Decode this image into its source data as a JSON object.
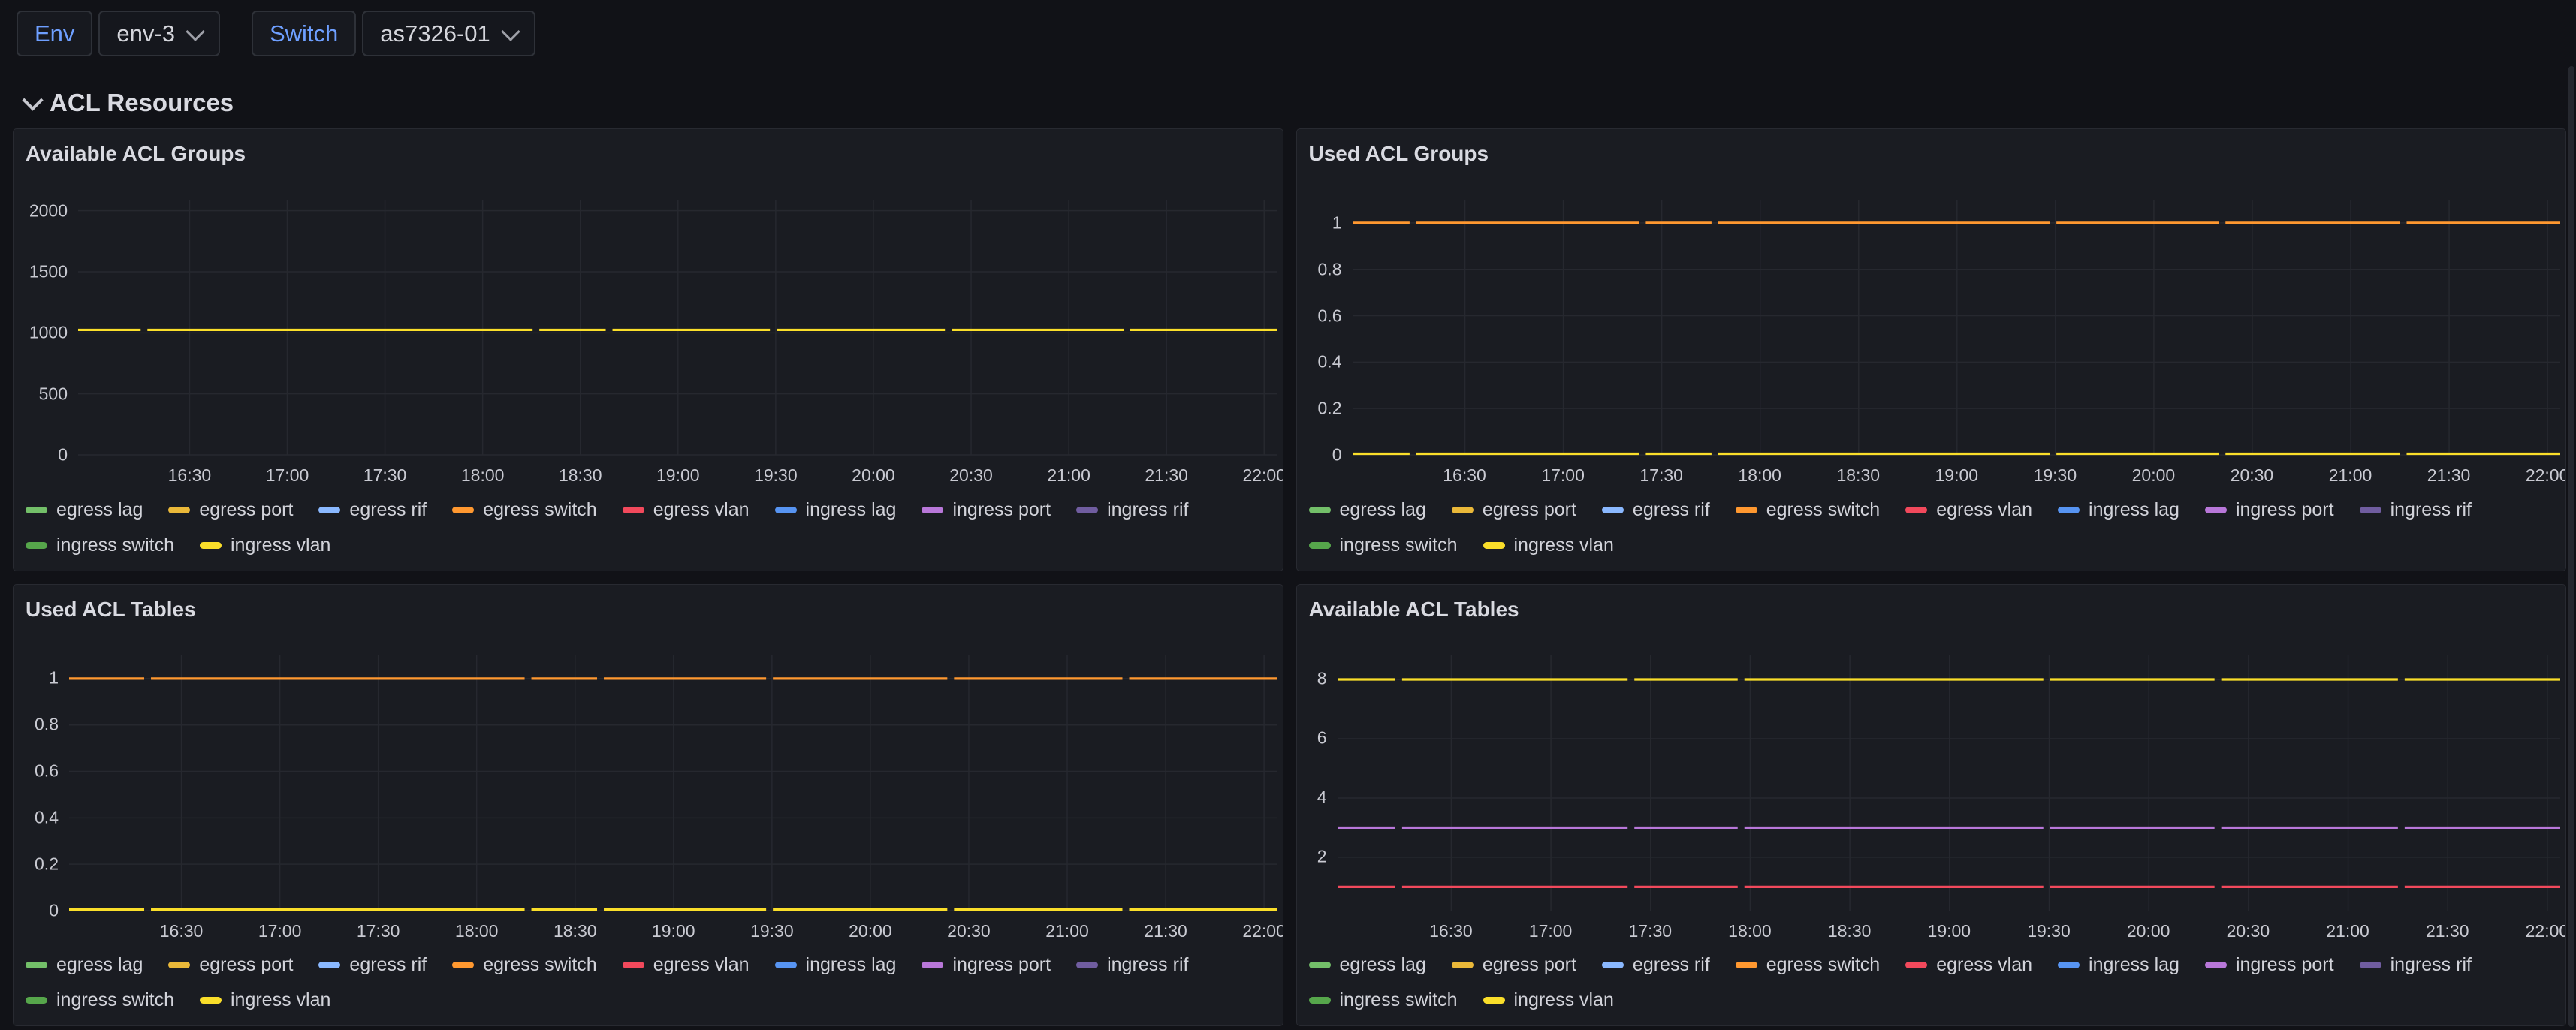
{
  "topbar": {
    "env_label": "Env",
    "env_value": "env-3",
    "switch_label": "Switch",
    "switch_value": "as7326-01"
  },
  "section": {
    "title": "ACL Resources"
  },
  "colors": {
    "page_bg": "#111217",
    "panel_bg": "#1A1C22",
    "grid_line": "#26282F",
    "axis_text": "#C9CAD2",
    "label_accent_blue": "#6E9FFF"
  },
  "x_ticks": [
    "16:30",
    "17:00",
    "17:30",
    "18:00",
    "18:30",
    "19:00",
    "19:30",
    "20:00",
    "20:30",
    "21:00",
    "21:30",
    "22:00"
  ],
  "legend": {
    "items": [
      {
        "label": "egress lag",
        "color": "#73BF69"
      },
      {
        "label": "egress port",
        "color": "#EAB839"
      },
      {
        "label": "egress rif",
        "color": "#8AB8FF"
      },
      {
        "label": "egress switch",
        "color": "#FF9830"
      },
      {
        "label": "egress vlan",
        "color": "#F2495C"
      },
      {
        "label": "ingress lag",
        "color": "#5794F2"
      },
      {
        "label": "ingress port",
        "color": "#B877D9"
      },
      {
        "label": "ingress rif",
        "color": "#705DA0"
      },
      {
        "label": "ingress switch",
        "color": "#56A64B"
      },
      {
        "label": "ingress vlan",
        "color": "#FADE2A"
      }
    ]
  },
  "panels": [
    {
      "title": "Available ACL Groups",
      "type": "line",
      "y_ticks": [
        {
          "v": 0,
          "label": "0"
        },
        {
          "v": 500,
          "label": "500"
        },
        {
          "v": 1000,
          "label": "1000"
        },
        {
          "v": 1500,
          "label": "1500"
        },
        {
          "v": 2000,
          "label": "2000"
        }
      ],
      "y_min": 0,
      "y_max": 2090,
      "gaps": [
        0.055,
        0.382,
        0.443,
        0.58,
        0.726,
        0.875
      ],
      "lines": [
        {
          "series": "ingress vlan",
          "color": "#FADE2A",
          "value": 1024
        }
      ]
    },
    {
      "title": "Used ACL Groups",
      "type": "line",
      "y_ticks": [
        {
          "v": 0,
          "label": "0"
        },
        {
          "v": 0.2,
          "label": "0.2"
        },
        {
          "v": 0.4,
          "label": "0.4"
        },
        {
          "v": 0.6,
          "label": "0.6"
        },
        {
          "v": 0.8,
          "label": "0.8"
        },
        {
          "v": 1,
          "label": "1"
        }
      ],
      "y_min": 0,
      "y_max": 1.1,
      "gaps": [
        0.05,
        0.24,
        0.3,
        0.58,
        0.72,
        0.87
      ],
      "lines": [
        {
          "series": "egress switch",
          "color": "#FF9830",
          "value": 1
        },
        {
          "series": "ingress vlan",
          "color": "#FADE2A",
          "value": 0
        }
      ]
    },
    {
      "title": "Used ACL Tables",
      "type": "line",
      "y_ticks": [
        {
          "v": 0,
          "label": "0"
        },
        {
          "v": 0.2,
          "label": "0.2"
        },
        {
          "v": 0.4,
          "label": "0.4"
        },
        {
          "v": 0.6,
          "label": "0.6"
        },
        {
          "v": 0.8,
          "label": "0.8"
        },
        {
          "v": 1,
          "label": "1"
        }
      ],
      "y_min": 0,
      "y_max": 1.1,
      "gaps": [
        0.065,
        0.38,
        0.44,
        0.58,
        0.73,
        0.875
      ],
      "lines": [
        {
          "series": "egress switch",
          "color": "#FF9830",
          "value": 1
        },
        {
          "series": "ingress vlan",
          "color": "#FADE2A",
          "value": 0
        }
      ]
    },
    {
      "title": "Available ACL Tables",
      "type": "line",
      "y_ticks": [
        {
          "v": 2,
          "label": "2"
        },
        {
          "v": 4,
          "label": "4"
        },
        {
          "v": 6,
          "label": "6"
        },
        {
          "v": 8,
          "label": "8"
        }
      ],
      "y_min": 0.2,
      "y_max": 8.81,
      "gaps": [
        0.05,
        0.24,
        0.33,
        0.58,
        0.72,
        0.87
      ],
      "lines": [
        {
          "series": "ingress vlan",
          "color": "#FADE2A",
          "value": 8
        },
        {
          "series": "ingress port",
          "color": "#B877D9",
          "value": 3
        },
        {
          "series": "egress vlan",
          "color": "#F2495C",
          "value": 1
        }
      ]
    }
  ]
}
